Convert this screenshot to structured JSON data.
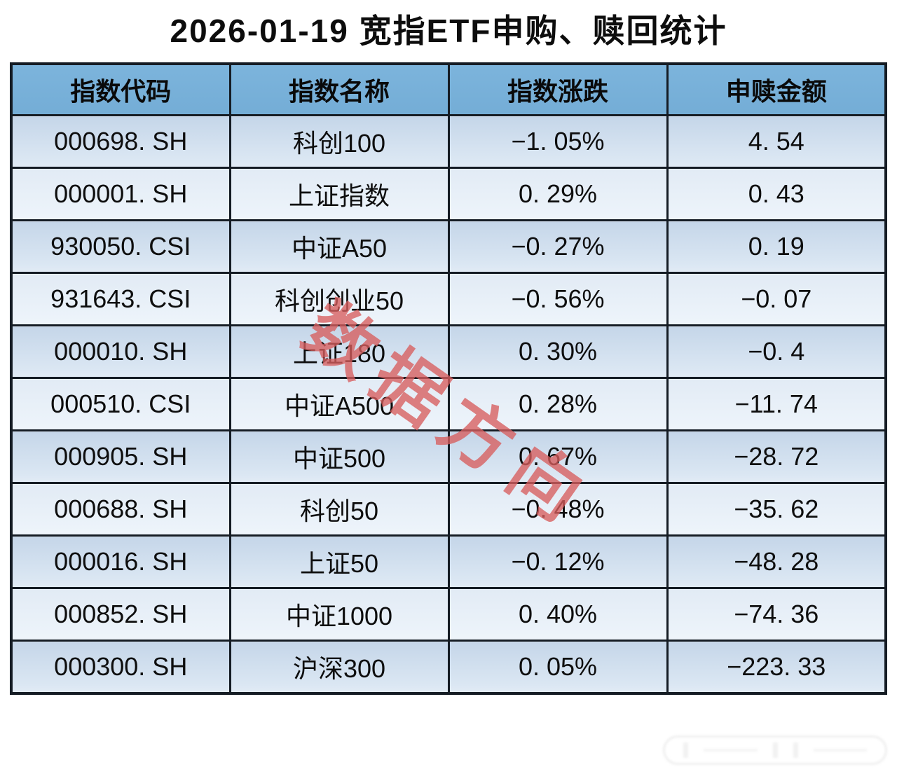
{
  "page": {
    "title": "2026-01-19 宽指ETF申购、赎回统计"
  },
  "watermark": {
    "text": "数据方向",
    "color": "#d85e5e"
  },
  "table": {
    "columns": [
      "指数代码",
      "指数名称",
      "指数涨跌",
      "申赎金额"
    ],
    "rows": [
      {
        "code": "000698. SH",
        "name": "科创100",
        "change": "−1. 05%",
        "amount": "4. 54"
      },
      {
        "code": "000001. SH",
        "name": "上证指数",
        "change": "0. 29%",
        "amount": "0. 43"
      },
      {
        "code": "930050. CSI",
        "name": "中证A50",
        "change": "−0. 27%",
        "amount": "0. 19"
      },
      {
        "code": "931643. CSI",
        "name": "科创创业50",
        "change": "−0. 56%",
        "amount": "−0. 07"
      },
      {
        "code": "000010. SH",
        "name": "上证180",
        "change": "0. 30%",
        "amount": "−0. 4"
      },
      {
        "code": "000510. CSI",
        "name": "中证A500",
        "change": "0. 28%",
        "amount": "−11. 74"
      },
      {
        "code": "000905. SH",
        "name": "中证500",
        "change": "0. 67%",
        "amount": "−28. 72"
      },
      {
        "code": "000688. SH",
        "name": "科创50",
        "change": "−0. 48%",
        "amount": "−35. 62"
      },
      {
        "code": "000016. SH",
        "name": "上证50",
        "change": "−0. 12%",
        "amount": "−48. 28"
      },
      {
        "code": "000852. SH",
        "name": "中证1000",
        "change": "0. 40%",
        "amount": "−74. 36"
      },
      {
        "code": "000300. SH",
        "name": "沪深300",
        "change": "0. 05%",
        "amount": "−223. 33"
      }
    ]
  },
  "chart_data": {
    "type": "table",
    "title": "2026-01-19 宽指ETF申购、赎回统计",
    "columns": [
      "指数代码",
      "指数名称",
      "指数涨跌",
      "申赎金额"
    ],
    "rows": [
      [
        "000698.SH",
        "科创100",
        "-1.05%",
        "4.54"
      ],
      [
        "000001.SH",
        "上证指数",
        "0.29%",
        "0.43"
      ],
      [
        "930050.CSI",
        "中证A50",
        "-0.27%",
        "0.19"
      ],
      [
        "931643.CSI",
        "科创创业50",
        "-0.56%",
        "-0.07"
      ],
      [
        "000010.SH",
        "上证180",
        "0.30%",
        "-0.4"
      ],
      [
        "000510.CSI",
        "中证A500",
        "0.28%",
        "-11.74"
      ],
      [
        "000905.SH",
        "中证500",
        "0.67%",
        "-28.72"
      ],
      [
        "000688.SH",
        "科创50",
        "-0.48%",
        "-35.62"
      ],
      [
        "000016.SH",
        "上证50",
        "-0.12%",
        "-48.28"
      ],
      [
        "000852.SH",
        "中证1000",
        "0.40%",
        "-74.36"
      ],
      [
        "000300.SH",
        "沪深300",
        "0.05%",
        "-223.33"
      ]
    ],
    "numeric": {
      "change_pct": [
        -1.05,
        0.29,
        -0.27,
        -0.56,
        0.3,
        0.28,
        0.67,
        -0.48,
        -0.12,
        0.4,
        0.05
      ],
      "amount": [
        4.54,
        0.43,
        0.19,
        -0.07,
        -0.4,
        -11.74,
        -28.72,
        -35.62,
        -48.28,
        -74.36,
        -223.33
      ]
    },
    "layout": {
      "header_position": "top",
      "grid": true,
      "row_striping": "alternating-blue"
    }
  },
  "colors": {
    "header_bg": "#77b0d8",
    "row_odd_top": "#c5d6e9",
    "row_odd_bottom": "#e2ebf5",
    "row_even_top": "#e2ebf5",
    "row_even_bottom": "#eff5fb",
    "border": "#151c24",
    "watermark_red": "#d85e5e",
    "title_text": "#0d0d0d"
  }
}
